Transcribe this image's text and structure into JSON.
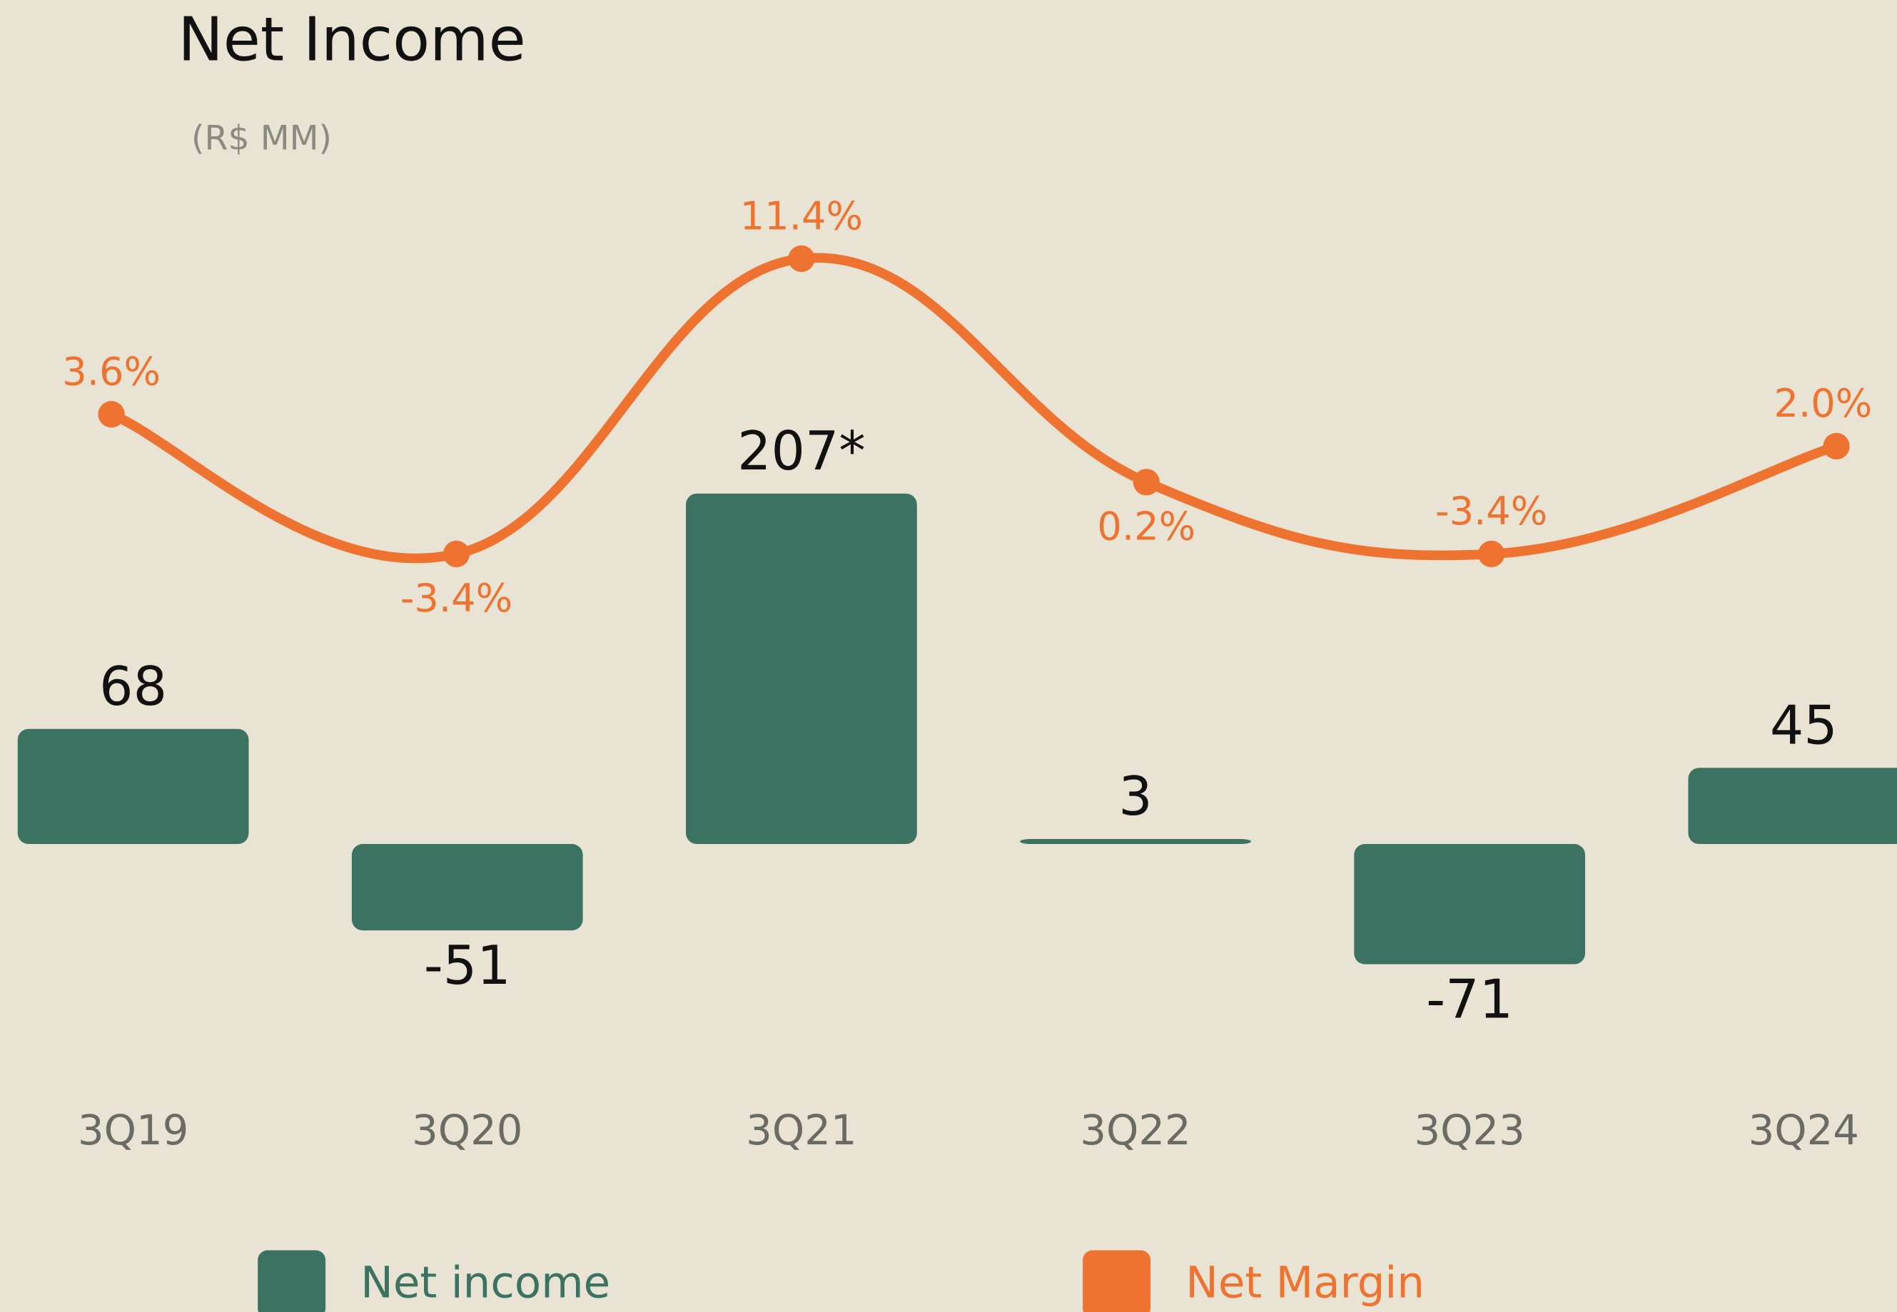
{
  "chart_data": {
    "type": "bar-line",
    "title": "Net Income",
    "subtitle": "(R$ MM)",
    "categories": [
      "3Q19",
      "3Q20",
      "3Q21",
      "3Q22",
      "3Q23",
      "3Q24"
    ],
    "series": [
      {
        "name": "Net income",
        "type": "bar",
        "color": "#3b7262",
        "values": [
          68,
          -51,
          207,
          3,
          -71,
          45
        ],
        "value_labels": [
          "68",
          "-51",
          "207*",
          "3",
          "-71",
          "45"
        ]
      },
      {
        "name": "Net Margin",
        "type": "line",
        "axis": "y2",
        "color": "#ee7330",
        "values": [
          3.6,
          -3.4,
          11.4,
          0.2,
          -3.4,
          2.0
        ],
        "value_labels": [
          "3.6%",
          "-3.4%",
          "11.4%",
          "0.2%",
          "-3.4%",
          "2.0%"
        ]
      }
    ],
    "ylim": [
      -150,
      250
    ],
    "y2lim": [
      -10,
      15
    ],
    "grid": false
  }
}
